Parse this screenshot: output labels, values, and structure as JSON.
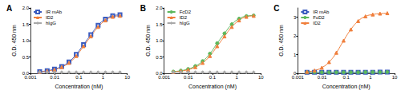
{
  "chart_data": [
    {
      "type": "line",
      "title": "A",
      "x_label": "Concentration (nM)",
      "y_label": "O.D. 450 nm",
      "log": "x",
      "grid": false,
      "legend": "upper left",
      "x": [
        0.0024,
        0.0049,
        0.0098,
        0.0195,
        0.039,
        0.078,
        0.156,
        0.3125,
        0.625,
        1.25,
        2.5,
        5
      ],
      "xlim": [
        0.001,
        10
      ],
      "xticks": [
        0.001,
        0.01,
        0.1,
        1,
        10
      ],
      "ylim": [
        0,
        2
      ],
      "yticks": [
        {
          "value": 0,
          "label": "0.0"
        },
        {
          "value": 0.5,
          "label": "0.5"
        },
        {
          "value": 1,
          "label": "1.0"
        },
        {
          "value": 1.5,
          "label": "1.5"
        },
        {
          "value": 2,
          "label": "2.0"
        }
      ],
      "series": [
        {
          "name": "IR mAb",
          "color": "#3a5bbf",
          "marker": "square_open",
          "line_style": "solid",
          "values": [
            0.05,
            0.08,
            0.13,
            0.21,
            0.35,
            0.58,
            0.88,
            1.18,
            1.47,
            1.66,
            1.76,
            1.79
          ]
        },
        {
          "name": "ID2",
          "color": "#f07f3c",
          "marker": "triangle",
          "line_style": "solid",
          "values": [
            0.04,
            0.07,
            0.11,
            0.19,
            0.32,
            0.53,
            0.83,
            1.13,
            1.42,
            1.62,
            1.73,
            1.76
          ]
        },
        {
          "name": "hIgG",
          "color": "#a8a8a8",
          "marker": "diamond",
          "line_style": "solid",
          "values": [
            0.03,
            0.03,
            0.03,
            0.03,
            0.03,
            0.03,
            0.03,
            0.03,
            0.03,
            0.03,
            0.03,
            0.03
          ]
        }
      ]
    },
    {
      "type": "line",
      "title": "B",
      "x_label": "Concentration (nM)",
      "y_label": "O.D. 450 nm",
      "log": "x",
      "grid": false,
      "legend": "upper left",
      "x": [
        0.0024,
        0.0049,
        0.0098,
        0.0195,
        0.039,
        0.078,
        0.156,
        0.3125,
        0.625,
        1.25,
        2.5,
        5
      ],
      "xlim": [
        0.001,
        10
      ],
      "xticks": [
        0.001,
        0.01,
        0.1,
        1,
        10
      ],
      "ylim": [
        0,
        2
      ],
      "yticks": [
        {
          "value": 0,
          "label": "0.0"
        },
        {
          "value": 0.5,
          "label": "0.5"
        },
        {
          "value": 1,
          "label": "1.0"
        },
        {
          "value": 1.5,
          "label": "1.5"
        },
        {
          "value": 2,
          "label": "2.0"
        }
      ],
      "series": [
        {
          "name": "FcD2",
          "color": "#5cb85c",
          "marker": "circle",
          "line_style": "solid",
          "values": [
            0.05,
            0.08,
            0.13,
            0.22,
            0.37,
            0.6,
            0.92,
            1.22,
            1.5,
            1.67,
            1.75,
            1.77
          ]
        },
        {
          "name": "ID2",
          "color": "#f07f3c",
          "marker": "triangle",
          "line_style": "solid",
          "values": [
            0.04,
            0.07,
            0.11,
            0.19,
            0.32,
            0.53,
            0.83,
            1.13,
            1.42,
            1.62,
            1.73,
            1.76
          ]
        },
        {
          "name": "hIgG",
          "color": "#a8a8a8",
          "marker": "diamond",
          "line_style": "solid",
          "values": [
            0.03,
            0.03,
            0.03,
            0.03,
            0.03,
            0.03,
            0.03,
            0.03,
            0.03,
            0.03,
            0.03,
            0.03
          ]
        }
      ]
    },
    {
      "type": "line",
      "title": "C",
      "x_label": "Concentration (nM)",
      "y_label": "O.D. 450 nm",
      "log": "x",
      "grid": false,
      "legend": "upper left",
      "x": [
        0.0024,
        0.0049,
        0.0098,
        0.0195,
        0.039,
        0.078,
        0.156,
        0.3125,
        0.625,
        1.25,
        2.5,
        5
      ],
      "xlim": [
        0.001,
        10
      ],
      "xticks": [
        0.001,
        0.01,
        0.1,
        1,
        10
      ],
      "ylim": [
        0,
        3.5
      ],
      "yticks": [
        0,
        1,
        2,
        3
      ],
      "series": [
        {
          "name": "IR mAb",
          "color": "#3a5bbf",
          "marker": "square_open",
          "line_style": "solid",
          "values": [
            0.05,
            0.05,
            0.05,
            0.05,
            0.05,
            0.05,
            0.05,
            0.05,
            0.05,
            0.05,
            0.06,
            0.06
          ]
        },
        {
          "name": "FcD2",
          "color": "#5cb85c",
          "marker": "circle",
          "line_style": "solid",
          "values": [
            0.05,
            0.05,
            0.05,
            0.05,
            0.05,
            0.05,
            0.05,
            0.05,
            0.06,
            0.06,
            0.06,
            0.07
          ]
        },
        {
          "name": "ID2",
          "color": "#f07f3c",
          "marker": "triangle",
          "line_style": "solid",
          "values": [
            0.08,
            0.15,
            0.3,
            0.6,
            1.1,
            1.75,
            2.35,
            2.8,
            3.05,
            3.15,
            3.2,
            3.22
          ]
        }
      ]
    }
  ]
}
